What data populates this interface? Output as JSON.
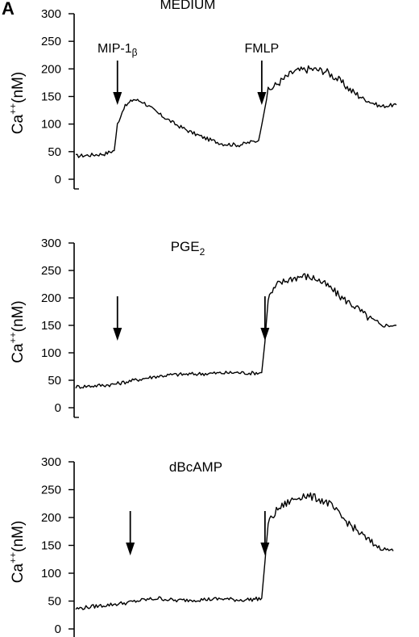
{
  "panel_label": "A",
  "y_axis_label_parts": {
    "base": "Ca",
    "sup": "++",
    "rest": "(nM)"
  },
  "chart_data": [
    {
      "type": "line",
      "title": "MEDIUM",
      "title_sub": "",
      "ylim": [
        0,
        300
      ],
      "yticks": [
        "0",
        "50",
        "100",
        "150",
        "200",
        "250",
        "300"
      ],
      "ylabel": "Ca++(nM)",
      "xlim": [
        0,
        100
      ],
      "annotations": [
        {
          "label": "MIP-1",
          "greek": "β",
          "x": 12
        },
        {
          "label": "FMLP",
          "x": 57
        }
      ],
      "series": [
        {
          "values": [
            [
              0,
              42
            ],
            [
              5,
              44
            ],
            [
              9,
              46
            ],
            [
              12,
              52
            ],
            [
              13,
              100
            ],
            [
              15,
              130
            ],
            [
              18,
              145
            ],
            [
              21,
              140
            ],
            [
              26,
              118
            ],
            [
              31,
              100
            ],
            [
              36,
              85
            ],
            [
              41,
              73
            ],
            [
              46,
              64
            ],
            [
              51,
              62
            ],
            [
              55,
              68
            ],
            [
              57,
              70
            ],
            [
              58,
              98
            ],
            [
              60,
              160
            ],
            [
              64,
              178
            ],
            [
              68,
              195
            ],
            [
              73,
              200
            ],
            [
              78,
              196
            ],
            [
              82,
              180
            ],
            [
              86,
              160
            ],
            [
              90,
              145
            ],
            [
              95,
              132
            ],
            [
              100,
              135
            ]
          ]
        }
      ]
    },
    {
      "type": "line",
      "title": "PGE",
      "title_sub": "2",
      "ylim": [
        0,
        300
      ],
      "yticks": [
        "0",
        "50",
        "100",
        "150",
        "200",
        "250",
        "300"
      ],
      "ylabel": "Ca++(nM)",
      "xlim": [
        0,
        100
      ],
      "annotations": [
        {
          "label": "",
          "x": 12
        },
        {
          "label": "",
          "x": 58
        }
      ],
      "series": [
        {
          "values": [
            [
              0,
              38
            ],
            [
              6,
              40
            ],
            [
              11,
              42
            ],
            [
              14,
              45
            ],
            [
              20,
              52
            ],
            [
              25,
              57
            ],
            [
              30,
              60
            ],
            [
              35,
              61
            ],
            [
              40,
              62
            ],
            [
              45,
              63
            ],
            [
              50,
              64
            ],
            [
              55,
              63
            ],
            [
              58,
              64
            ],
            [
              59,
              120
            ],
            [
              60,
              200
            ],
            [
              63,
              225
            ],
            [
              67,
              235
            ],
            [
              71,
              240
            ],
            [
              75,
              235
            ],
            [
              79,
              220
            ],
            [
              83,
              200
            ],
            [
              87,
              185
            ],
            [
              91,
              165
            ],
            [
              95,
              150
            ],
            [
              100,
              150
            ]
          ]
        }
      ]
    },
    {
      "type": "line",
      "title": "dBcAMP",
      "title_sub": "",
      "ylim": [
        0,
        300
      ],
      "yticks": [
        "0",
        "50",
        "100",
        "150",
        "200",
        "250",
        "300"
      ],
      "ylabel": "Ca++(nM)",
      "xlim": [
        0,
        100
      ],
      "annotations": [
        {
          "label": "",
          "x": 16
        },
        {
          "label": "",
          "x": 58
        }
      ],
      "series": [
        {
          "values": [
            [
              0,
              36
            ],
            [
              5,
              40
            ],
            [
              10,
              43
            ],
            [
              16,
              47
            ],
            [
              21,
              52
            ],
            [
              26,
              55
            ],
            [
              31,
              51
            ],
            [
              36,
              52
            ],
            [
              41,
              53
            ],
            [
              46,
              54
            ],
            [
              51,
              52
            ],
            [
              55,
              53
            ],
            [
              58,
              55
            ],
            [
              59,
              120
            ],
            [
              60,
              190
            ],
            [
              63,
              215
            ],
            [
              67,
              230
            ],
            [
              71,
              240
            ],
            [
              75,
              235
            ],
            [
              79,
              225
            ],
            [
              83,
              200
            ],
            [
              87,
              180
            ],
            [
              91,
              160
            ],
            [
              95,
              145
            ],
            [
              99,
              140
            ]
          ]
        }
      ]
    }
  ]
}
